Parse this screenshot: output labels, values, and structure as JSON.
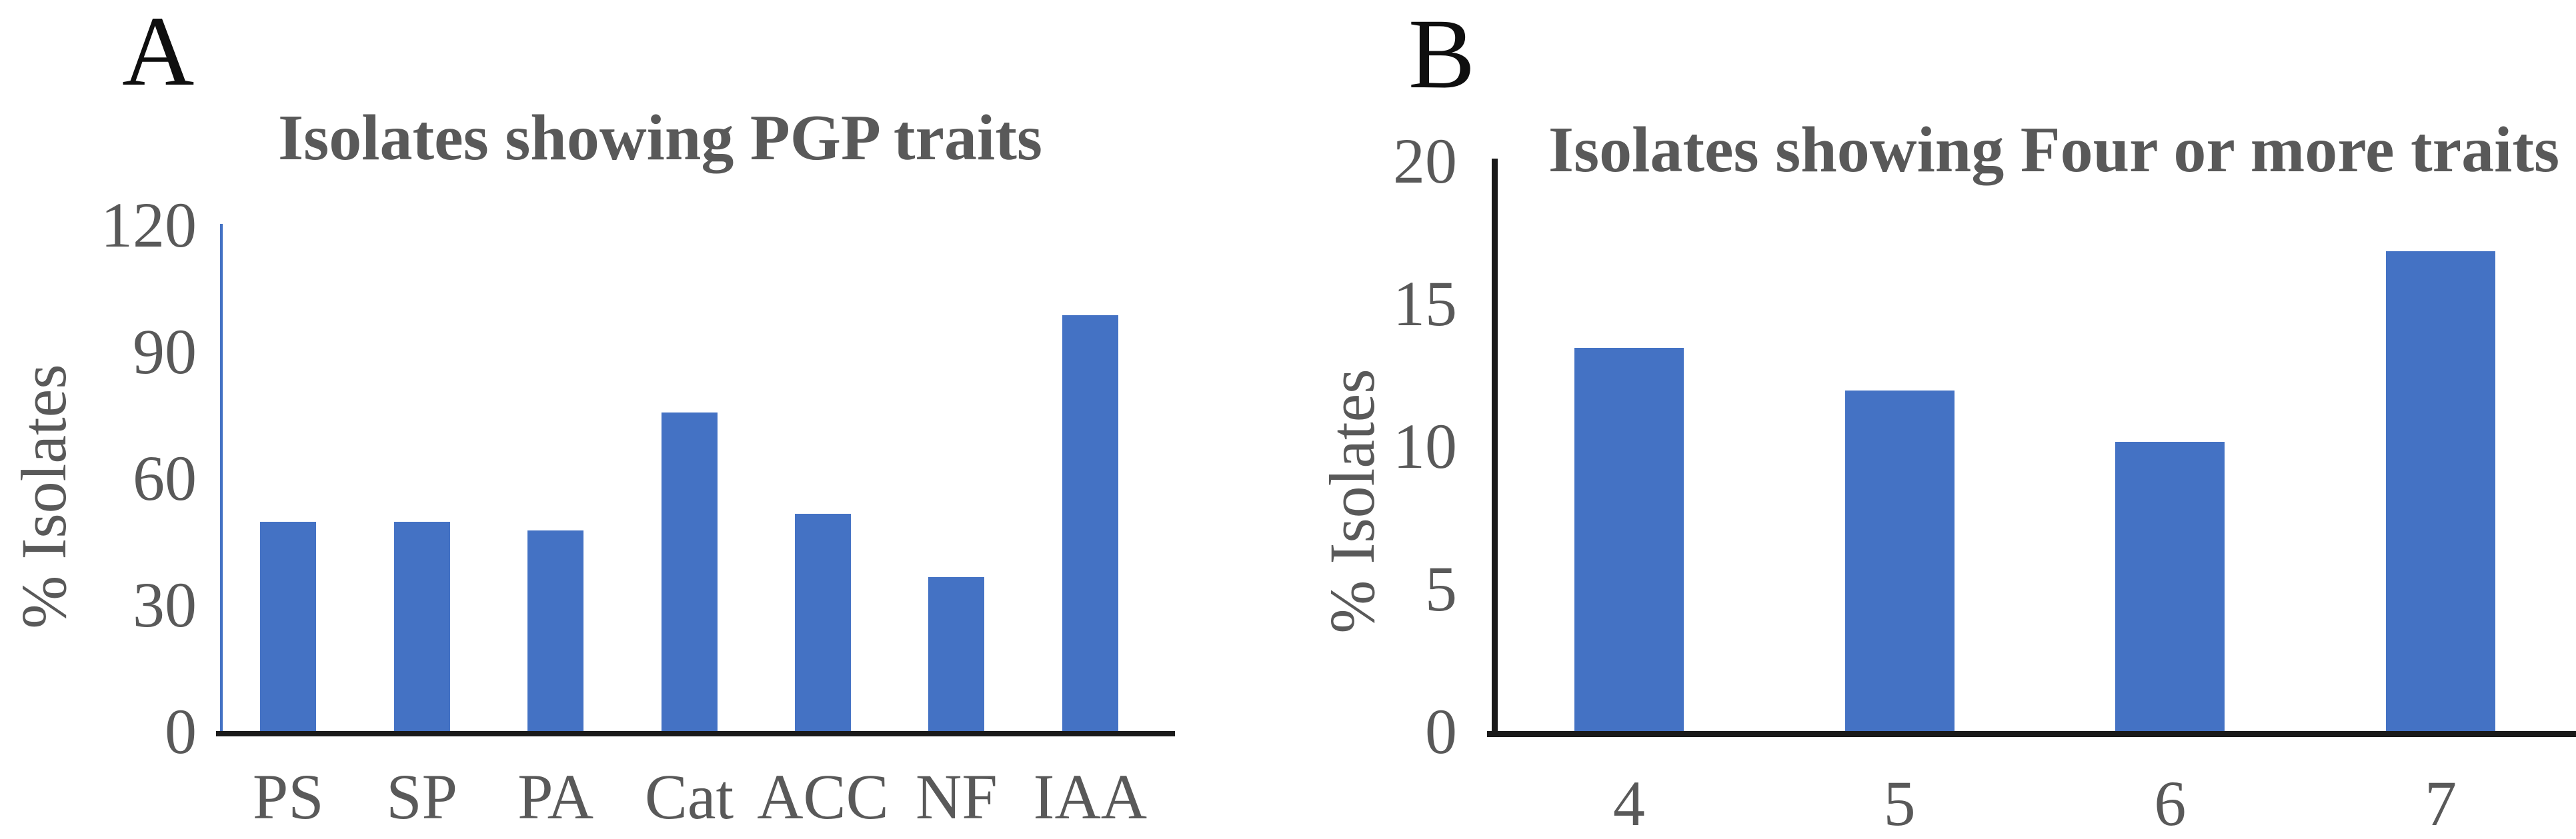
{
  "figure": {
    "background_color": "#ffffff",
    "text_gray": "#595959",
    "axis_black": "#1a1a1a",
    "panel_letter_color": "#0f0f0f"
  },
  "chart_data": [
    {
      "type": "bar",
      "panel_label": "A",
      "title": "Isolates showing PGP traits",
      "categories": [
        "PS",
        "SP",
        "PA",
        "Cat",
        "ACC",
        "NF",
        "IAA"
      ],
      "values": [
        50,
        50,
        48,
        76,
        52,
        37,
        99
      ],
      "xlabel": "",
      "ylabel": "% Isolates",
      "ylim": [
        0,
        120
      ],
      "ytick_step": 30,
      "ytick_labels": [
        "0",
        "30",
        "60",
        "90",
        "120"
      ],
      "bar_color": "#4472C4",
      "y_axis_line_color": "#4472C4",
      "x_axis_line_color": "#1a1a1a",
      "grid": false,
      "legend": false
    },
    {
      "type": "bar",
      "panel_label": "B",
      "title": "Isolates showing Four or more traits",
      "categories": [
        "4",
        "5",
        "6",
        "7"
      ],
      "values": [
        13.5,
        12,
        10.2,
        16.9
      ],
      "xlabel": "",
      "ylabel": "% Isolates",
      "ylim": [
        0,
        20
      ],
      "ytick_step": 5,
      "ytick_labels": [
        "0",
        "5",
        "10",
        "15",
        "20"
      ],
      "bar_color": "#4472C4",
      "y_axis_line_color": "#1a1a1a",
      "x_axis_line_color": "#1a1a1a",
      "grid": false,
      "legend": false
    }
  ]
}
